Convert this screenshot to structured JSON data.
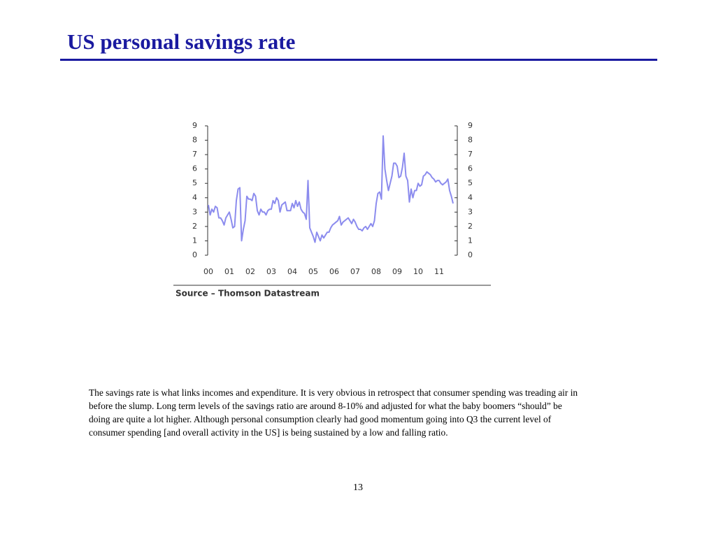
{
  "title": "US personal savings rate",
  "chart_data": {
    "type": "line",
    "series": [
      {
        "name": null,
        "color": "#8c8cee",
        "values": [
          3.5,
          2.8,
          3.2,
          3.0,
          3.4,
          3.3,
          2.6,
          2.6,
          2.4,
          2.1,
          2.6,
          2.8,
          3.0,
          2.5,
          1.9,
          2.0,
          3.8,
          4.6,
          4.7,
          1.0,
          1.8,
          2.4,
          4.1,
          3.9,
          3.9,
          3.8,
          4.3,
          4.1,
          3.1,
          2.8,
          3.2,
          3.0,
          3.0,
          2.8,
          3.1,
          3.2,
          3.2,
          3.8,
          3.6,
          4.0,
          3.8,
          3.0,
          3.5,
          3.6,
          3.7,
          3.1,
          3.1,
          3.1,
          3.6,
          3.3,
          3.8,
          3.4,
          3.7,
          3.2,
          3.0,
          2.9,
          2.5,
          5.2,
          1.9,
          1.6,
          1.3,
          0.9,
          1.6,
          1.3,
          1.0,
          1.4,
          1.2,
          1.4,
          1.6,
          1.6,
          1.9,
          2.1,
          2.2,
          2.3,
          2.4,
          2.7,
          2.1,
          2.3,
          2.4,
          2.5,
          2.6,
          2.4,
          2.2,
          2.5,
          2.3,
          2.0,
          1.8,
          1.8,
          1.7,
          1.9,
          2.0,
          1.8,
          2.0,
          2.2,
          2.0,
          2.4,
          3.6,
          4.3,
          4.4,
          3.9,
          8.3,
          6.0,
          5.2,
          4.5,
          5.0,
          5.5,
          6.4,
          6.4,
          6.2,
          5.4,
          5.5,
          6.1,
          7.1,
          5.5,
          5.2,
          3.7,
          4.6,
          4.0,
          4.5,
          4.5,
          5.0,
          4.8,
          4.9,
          5.5,
          5.6,
          5.8,
          5.7,
          5.6,
          5.4,
          5.3,
          5.1,
          5.2,
          5.2,
          5.0,
          4.9,
          5.0,
          5.1,
          5.3,
          4.5,
          4.1,
          3.6
        ]
      }
    ],
    "xlim": [
      0,
      140
    ],
    "xticks": [
      {
        "value": 0,
        "label": "00"
      },
      {
        "value": 12,
        "label": "01"
      },
      {
        "value": 24,
        "label": "02"
      },
      {
        "value": 36,
        "label": "03"
      },
      {
        "value": 48,
        "label": "04"
      },
      {
        "value": 60,
        "label": "05"
      },
      {
        "value": 72,
        "label": "06"
      },
      {
        "value": 84,
        "label": "07"
      },
      {
        "value": 96,
        "label": "08"
      },
      {
        "value": 108,
        "label": "09"
      },
      {
        "value": 120,
        "label": "10"
      },
      {
        "value": 132,
        "label": "11"
      }
    ],
    "ylim": [
      0,
      9
    ],
    "yticks": [
      0,
      1,
      2,
      3,
      4,
      5,
      6,
      7,
      8,
      9
    ],
    "y2lim": [
      0,
      9
    ],
    "y2ticks": [
      0,
      1,
      2,
      3,
      4,
      5,
      6,
      7,
      8,
      9
    ]
  },
  "source": "Source – Thomson Datastream",
  "body": "The savings rate is what links incomes and expenditure. It is very obvious in retrospect that consumer spending was treading air in before the slump. Long term levels of the savings ratio are around 8-10% and adjusted for what the baby boomers “should” be doing are quite a lot higher.  Although personal consumption clearly had good momentum going into Q3 the current level of consumer spending [and overall activity in the US] is being sustained by a low and falling ratio.",
  "page_number": "13"
}
